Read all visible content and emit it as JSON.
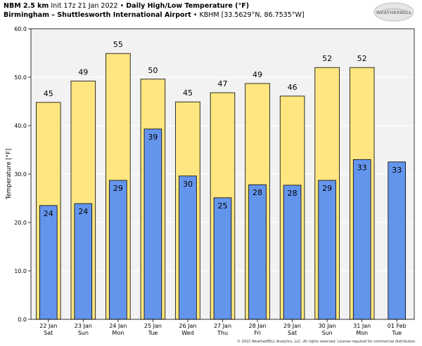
{
  "header": {
    "model": "NBM 2.5 km",
    "init": "Init 17z 21 Jan 2022",
    "bullet": "•",
    "title": "Daily High/Low Temperature (°F)",
    "location": "Birmingham – Shuttlesworth International Airport",
    "station": "KBHM [33.5629°N, 86.7535°W]"
  },
  "logo_text": "WEATHERBELL",
  "copyright": "© 2022 WeatherBELL Analytics, LLC. All rights reserved. License required for commercial distribution.",
  "colors": {
    "high": "#ffe680",
    "low": "#6495ed",
    "plot_bg": "#f2f2f2",
    "grid": "#ffffff",
    "bar_edge": "#000000"
  },
  "chart_data": {
    "type": "bar",
    "title": "Daily High/Low Temperature (°F)",
    "xlabel": "",
    "ylabel": "Temperature [°F]",
    "ylim": [
      0,
      60
    ],
    "yticks": [
      "0.0",
      "10.0",
      "20.0",
      "30.0",
      "40.0",
      "50.0",
      "60.0"
    ],
    "categories": [
      {
        "date": "22 Jan",
        "day": "Sat"
      },
      {
        "date": "23 Jan",
        "day": "Sun"
      },
      {
        "date": "24 Jan",
        "day": "Mon"
      },
      {
        "date": "25 Jan",
        "day": "Tue"
      },
      {
        "date": "26 Jan",
        "day": "Wed"
      },
      {
        "date": "27 Jan",
        "day": "Thu"
      },
      {
        "date": "28 Jan",
        "day": "Fri"
      },
      {
        "date": "29 Jan",
        "day": "Sat"
      },
      {
        "date": "30 Jan",
        "day": "Sun"
      },
      {
        "date": "31 Jan",
        "day": "Mon"
      },
      {
        "date": "01 Feb",
        "day": "Tue"
      }
    ],
    "series": [
      {
        "key": "high",
        "values": [
          44.8,
          49.2,
          54.9,
          49.6,
          44.9,
          46.8,
          48.7,
          46.1,
          52.0,
          52.0,
          null
        ],
        "labels": [
          "45",
          "49",
          "55",
          "50",
          "45",
          "47",
          "49",
          "46",
          "52",
          "52",
          ""
        ]
      },
      {
        "key": "low",
        "values": [
          23.5,
          23.9,
          28.7,
          39.3,
          29.6,
          25.1,
          27.8,
          27.7,
          28.7,
          33.0,
          32.5
        ],
        "labels": [
          "24",
          "24",
          "29",
          "39",
          "30",
          "25",
          "28",
          "28",
          "29",
          "33",
          "33"
        ]
      }
    ],
    "grid": true
  }
}
